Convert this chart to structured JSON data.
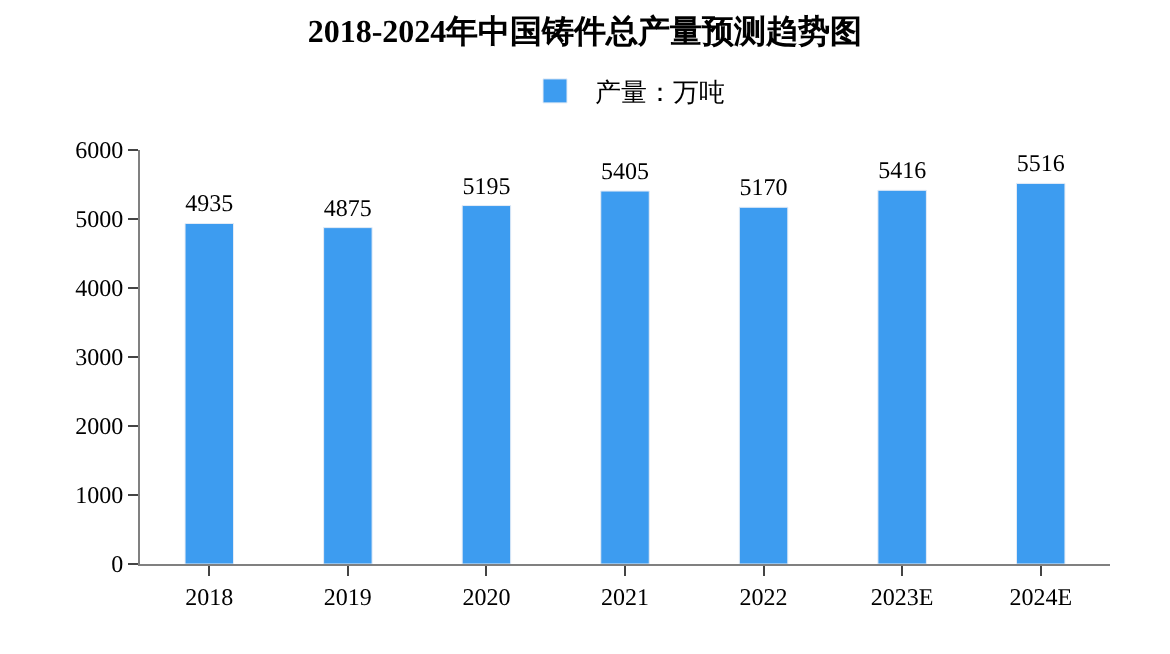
{
  "chart_data": {
    "type": "bar",
    "title": "2018-2024年中国铸件总产量预测趋势图",
    "categories": [
      "2018",
      "2019",
      "2020",
      "2021",
      "2022",
      "2023E",
      "2024E"
    ],
    "series": [
      {
        "name": "产量：万吨",
        "color": "#3d9cf0",
        "values": [
          4935,
          4875,
          5195,
          5405,
          5170,
          5416,
          5516
        ]
      }
    ],
    "ylim": [
      0,
      6000
    ],
    "yticks": [
      0,
      1000,
      2000,
      3000,
      4000,
      5000,
      6000
    ],
    "data_labels": true,
    "legend": "top",
    "grid": false
  }
}
